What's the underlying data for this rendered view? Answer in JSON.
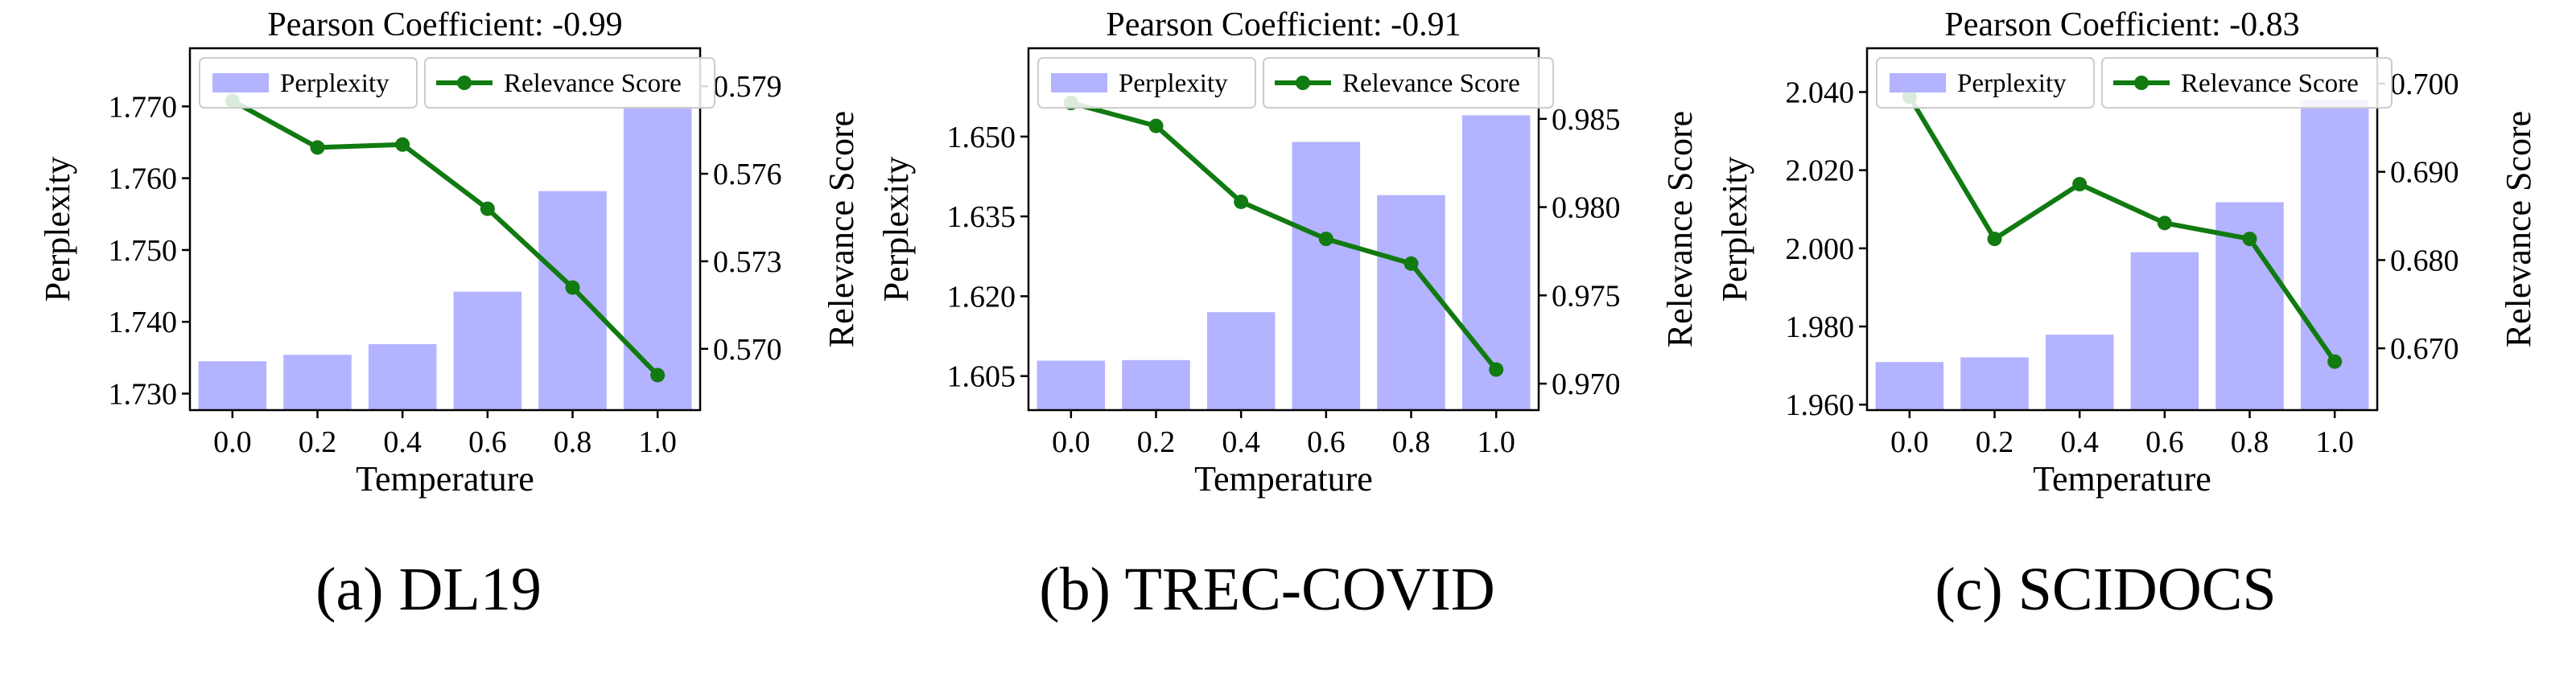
{
  "figure": {
    "captions": [
      "(a) DL19",
      "(b) TREC-COVID",
      "(c) SCIDOCS"
    ]
  },
  "colors": {
    "bar": "#b3b3ff",
    "line": "#117a11",
    "axis": "#000000"
  },
  "chart_data": [
    {
      "type": "bar+line",
      "title": "Pearson Coefficient: -0.99",
      "xlabel": "Temperature",
      "ylabel_left": "Perplexity",
      "ylabel_right": "Relevance Score",
      "categories": [
        "0.0",
        "0.2",
        "0.4",
        "0.6",
        "0.8",
        "1.0"
      ],
      "series": [
        {
          "name": "Perplexity",
          "kind": "bar",
          "axis": "left",
          "values": [
            1.7345,
            1.7354,
            1.7369,
            1.7442,
            1.7582,
            1.77
          ]
        },
        {
          "name": "Relevance Score",
          "kind": "line",
          "axis": "right",
          "values": [
            0.5785,
            0.5769,
            0.577,
            0.5748,
            0.5721,
            0.5691
          ]
        }
      ],
      "ylim_left": [
        1.7277,
        1.7781
      ],
      "ylim_right": [
        0.5679,
        0.5803
      ],
      "yticks_left": [
        "1.730",
        "1.740",
        "1.750",
        "1.760",
        "1.770"
      ],
      "yticks_right": [
        "0.570",
        "0.573",
        "0.576",
        "0.579"
      ],
      "legend": "top"
    },
    {
      "type": "bar+line",
      "title": "Pearson Coefficient: -0.91",
      "xlabel": "Temperature",
      "ylabel_left": "Perplexity",
      "ylabel_right": "Relevance Score",
      "categories": [
        "0.0",
        "0.2",
        "0.4",
        "0.6",
        "0.8",
        "1.0"
      ],
      "series": [
        {
          "name": "Perplexity",
          "kind": "bar",
          "axis": "left",
          "values": [
            1.6079,
            1.608,
            1.617,
            1.649,
            1.639,
            1.654
          ]
        },
        {
          "name": "Relevance Score",
          "kind": "line",
          "axis": "right",
          "values": [
            0.9859,
            0.9846,
            0.9803,
            0.9782,
            0.9768,
            0.9708
          ]
        }
      ],
      "ylim_left": [
        1.5986,
        1.6666
      ],
      "ylim_right": [
        0.9685,
        0.989
      ],
      "yticks_left": [
        "1.605",
        "1.620",
        "1.635",
        "1.650"
      ],
      "yticks_right": [
        "0.970",
        "0.975",
        "0.980",
        "0.985"
      ],
      "legend": "top"
    },
    {
      "type": "bar+line",
      "title": "Pearson Coefficient: -0.83",
      "xlabel": "Temperature",
      "ylabel_left": "Perplexity",
      "ylabel_right": "Relevance Score",
      "categories": [
        "0.0",
        "0.2",
        "0.4",
        "0.6",
        "0.8",
        "1.0"
      ],
      "series": [
        {
          "name": "Perplexity",
          "kind": "bar",
          "axis": "left",
          "values": [
            1.9709,
            1.9721,
            1.9779,
            1.999,
            2.0118,
            2.038
          ]
        },
        {
          "name": "Relevance Score",
          "kind": "line",
          "axis": "right",
          "values": [
            0.6985,
            0.6824,
            0.6886,
            0.6842,
            0.6824,
            0.6685
          ]
        }
      ],
      "ylim_left": [
        1.9586,
        2.0512
      ],
      "ylim_right": [
        0.663,
        0.704
      ],
      "yticks_left": [
        "1.960",
        "1.980",
        "2.000",
        "2.020",
        "2.040"
      ],
      "yticks_right": [
        "0.670",
        "0.680",
        "0.690",
        "0.700"
      ],
      "legend": "top"
    }
  ]
}
